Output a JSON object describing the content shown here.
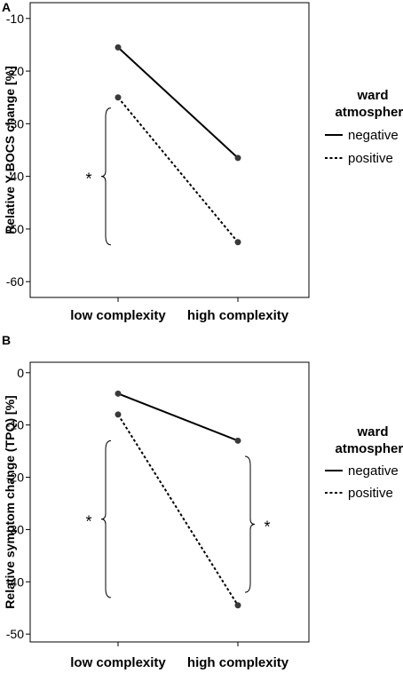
{
  "chart_data": [
    {
      "type": "line",
      "panel": "A",
      "categories": [
        "low complexity",
        "high complexity"
      ],
      "ylabel": "Relative Y-BOCS change [%]",
      "ylim": [
        -63,
        -7
      ],
      "yticks": [
        -10,
        -20,
        -30,
        -40,
        -50,
        -60
      ],
      "yticklabels": [
        "-10",
        "-20",
        "-30",
        "-40",
        "-50",
        "-60"
      ],
      "legend": {
        "title_lines": [
          "ward",
          "atmosphere"
        ],
        "placement": "right"
      },
      "series": [
        {
          "name": "negative",
          "style": "solid",
          "values": [
            -15.5,
            -36.5
          ]
        },
        {
          "name": "positive",
          "style": "dashed",
          "values": [
            -25,
            -52.5
          ]
        }
      ],
      "annotations": [
        {
          "text": "*",
          "category": "low complexity",
          "side": "left",
          "range": [
            -27,
            -53
          ]
        }
      ]
    },
    {
      "type": "line",
      "panel": "B",
      "categories": [
        "low complexity",
        "high complexity"
      ],
      "ylabel": "Relative symptom change (TPQ) [%]",
      "ylim": [
        -51.5,
        2
      ],
      "yticks": [
        0,
        -10,
        -20,
        -30,
        -40,
        -50
      ],
      "yticklabels": [
        "0",
        "-10",
        "-20",
        "-30",
        "-40",
        "-50"
      ],
      "legend": {
        "title_lines": [
          "ward",
          "atmosphere"
        ],
        "placement": "right"
      },
      "series": [
        {
          "name": "negative",
          "style": "solid",
          "values": [
            -4,
            -13
          ]
        },
        {
          "name": "positive",
          "style": "dashed",
          "values": [
            -8,
            -44.5
          ]
        }
      ],
      "annotations": [
        {
          "text": "*",
          "category": "low complexity",
          "side": "left",
          "range": [
            -13,
            -43
          ]
        },
        {
          "text": "*",
          "category": "high complexity",
          "side": "right",
          "range": [
            -16,
            -42
          ]
        }
      ]
    }
  ],
  "colors": {
    "line": "#000000",
    "marker": "#3a3a3a",
    "frame": "#000000"
  }
}
